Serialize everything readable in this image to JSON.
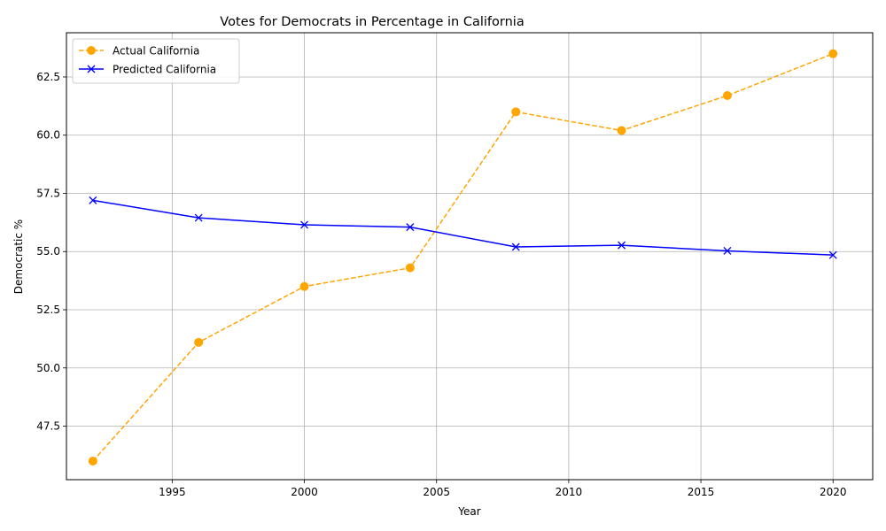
{
  "chart_data": {
    "type": "line",
    "title": "Votes for Democrats in Percentage in California",
    "xlabel": "Year",
    "ylabel": "Democratic %",
    "x": [
      1992,
      1996,
      2000,
      2004,
      2008,
      2012,
      2016,
      2020
    ],
    "xlim": [
      1991,
      2021.5
    ],
    "ylim": [
      45.2,
      64.4
    ],
    "x_ticks": [
      1995,
      2000,
      2005,
      2010,
      2015,
      2020
    ],
    "y_ticks": [
      47.5,
      50.0,
      52.5,
      55.0,
      57.5,
      60.0,
      62.5
    ],
    "y_tick_labels": [
      "47.5",
      "50.0",
      "52.5",
      "55.0",
      "57.5",
      "60.0",
      "62.5"
    ],
    "grid": true,
    "legend_position": "upper-left",
    "series": [
      {
        "name": "Actual California",
        "values": [
          46.0,
          51.1,
          53.5,
          54.3,
          61.0,
          60.2,
          61.7,
          63.5
        ],
        "color": "#ffa500",
        "line_style": "dashed",
        "marker": "circle"
      },
      {
        "name": "Predicted California",
        "values": [
          57.2,
          56.45,
          56.15,
          56.05,
          55.2,
          55.27,
          55.03,
          54.85
        ],
        "color": "#0000ff",
        "line_style": "solid",
        "marker": "x"
      }
    ]
  }
}
